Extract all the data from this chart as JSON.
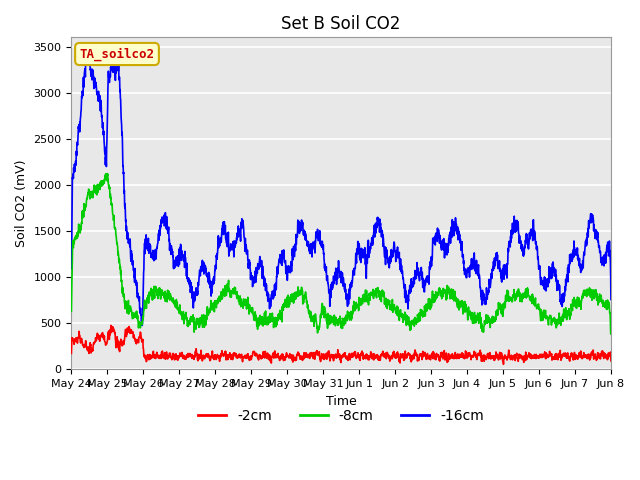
{
  "title": "Set B Soil CO2",
  "ylabel": "Soil CO2 (mV)",
  "xlabel": "Time",
  "legend_label": "TA_soilco2",
  "series_labels": [
    "-2cm",
    "-8cm",
    "-16cm"
  ],
  "series_colors": [
    "#ff0000",
    "#00cc00",
    "#0000ff"
  ],
  "ylim": [
    0,
    3600
  ],
  "yticks": [
    0,
    500,
    1000,
    1500,
    2000,
    2500,
    3000,
    3500
  ],
  "xtick_labels": [
    "May 24",
    "May 25",
    "May 26",
    "May 27",
    "May 28",
    "May 29",
    "May 30",
    "May 31",
    "Jun 1",
    "Jun 2",
    "Jun 3",
    "Jun 4",
    "Jun 5",
    "Jun 6",
    "Jun 7",
    "Jun 8"
  ],
  "plot_bg_color": "#e8e8e8",
  "fig_bg_color": "#ffffff",
  "grid_color": "#ffffff",
  "legend_box_facecolor": "#ffffcc",
  "legend_box_edgecolor": "#ccaa00",
  "legend_text_color": "#cc0000",
  "title_fontsize": 12,
  "axis_label_fontsize": 9,
  "tick_label_fontsize": 8,
  "linewidth": 1.2
}
